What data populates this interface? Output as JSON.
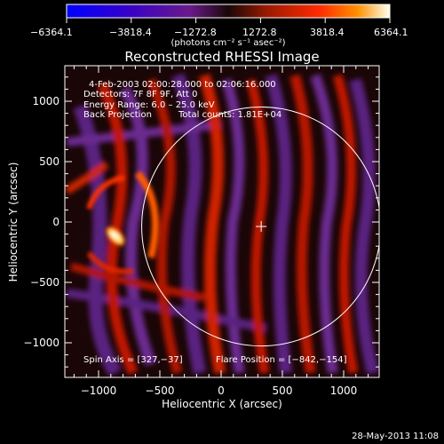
{
  "colorbar": {
    "ticks": [
      "−6364.1",
      "−3818.4",
      "−1272.8",
      "1272.8",
      "3818.4",
      "6364.1"
    ],
    "unit_label": "(photons cm⁻² s⁻¹ asec⁻²)",
    "tick_values": [
      -6364.1,
      -3818.4,
      -1272.8,
      1272.8,
      3818.4,
      6364.1
    ]
  },
  "image": {
    "title": "Reconstructed RHESSI Image",
    "time_range": "4-Feb-2003 02:00:28.000 to 02:06:16.000",
    "detectors": "Detectors: 7F 8F 9F, Att 0",
    "energy_range": "Energy Range: 6.0 – 25.0 keV",
    "method": "Back Projection",
    "total_counts": "Total counts: 1.81E+04",
    "spin_axis": "Spin Axis = [327,−37]",
    "flare_position": "Flare Position = [−842,−154]"
  },
  "axes": {
    "xlabel": "Heliocentric X (arcsec)",
    "ylabel": "Heliocentric Y (arcsec)",
    "xticks": [
      "−1000",
      "−500",
      "0",
      "500",
      "1000"
    ],
    "yticks": [
      "1000",
      "500",
      "0",
      "−500",
      "−1000"
    ],
    "xtick_values": [
      -1000,
      -500,
      0,
      500,
      1000
    ],
    "ytick_values": [
      1000,
      500,
      0,
      -500,
      -1000
    ],
    "xlim": [
      -1290,
      1290
    ],
    "ylim": [
      -1290,
      1290
    ]
  },
  "overlays": {
    "limb_radius_arcsec": 975,
    "spin_axis_arcsec": [
      327,
      -37
    ],
    "flare_position_arcsec": [
      -842,
      -154
    ]
  },
  "footer": {
    "date": "28-May-2013 11:08"
  }
}
